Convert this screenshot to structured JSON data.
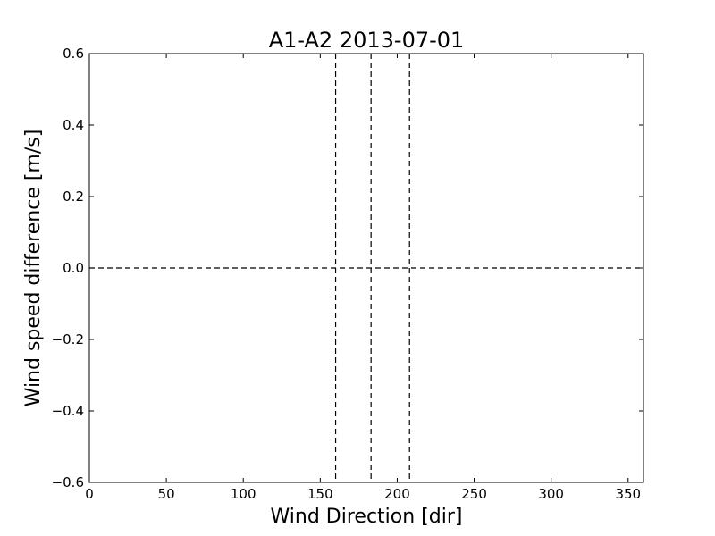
{
  "chart_data": {
    "type": "line",
    "title": "A1-A2 2013-07-01",
    "xlabel": "Wind Direction [dir]",
    "ylabel": "Wind speed difference [m/s]",
    "xlim": [
      0,
      360
    ],
    "ylim": [
      -0.6,
      0.6
    ],
    "xticks": [
      0,
      50,
      100,
      150,
      200,
      250,
      300,
      350
    ],
    "yticks": [
      -0.6,
      -0.4,
      -0.2,
      0.0,
      0.2,
      0.4,
      0.6
    ],
    "xtick_labels": [
      "0",
      "50",
      "100",
      "150",
      "200",
      "250",
      "300",
      "350"
    ],
    "ytick_labels": [
      "−0.6",
      "−0.4",
      "−0.2",
      "0.0",
      "0.2",
      "0.4",
      "0.6"
    ],
    "grid": false,
    "reference_lines": {
      "horizontal": [
        0.0
      ],
      "vertical": [
        160,
        183,
        208
      ],
      "style": "dashed",
      "color": "#000000"
    },
    "series": []
  }
}
